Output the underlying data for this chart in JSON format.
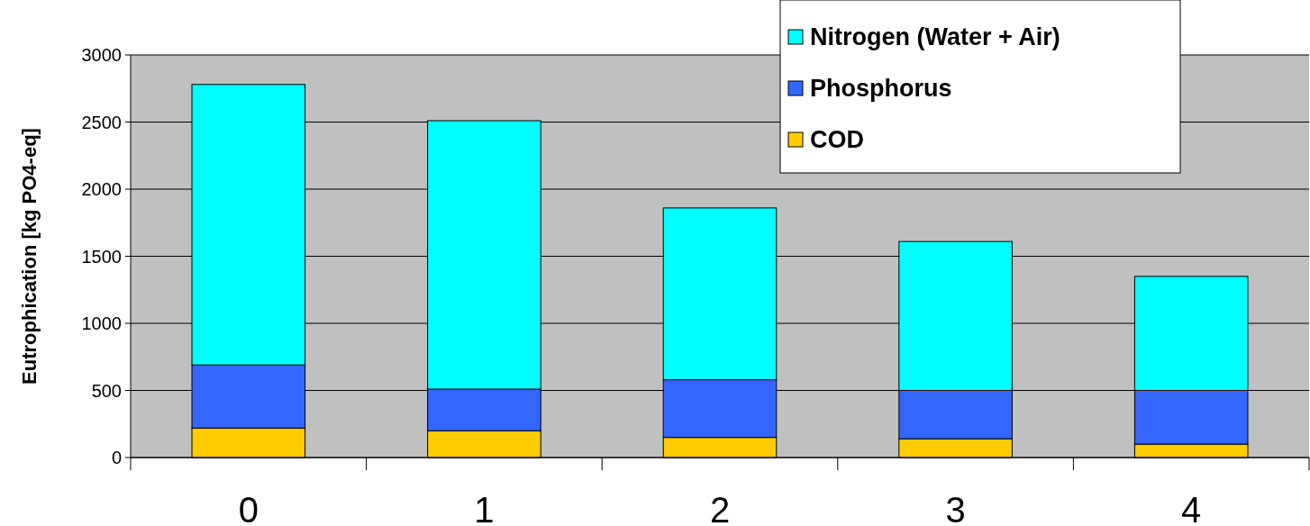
{
  "chart_data": {
    "type": "bar",
    "stacked": true,
    "ylabel": "Eutrophication [kg PO4-eq]",
    "categories": [
      "0",
      "1",
      "2",
      "3",
      "4"
    ],
    "series": [
      {
        "name": "COD",
        "color": "#ffcc00",
        "values": [
          220,
          200,
          150,
          140,
          100
        ]
      },
      {
        "name": "Phosphorus",
        "color": "#3366ff",
        "values": [
          470,
          310,
          430,
          360,
          400
        ]
      },
      {
        "name": "Nitrogen (Water + Air)",
        "color": "#00ffff",
        "values": [
          2090,
          2000,
          1280,
          1110,
          850
        ]
      }
    ],
    "ylim": [
      0,
      3000
    ],
    "yticks": [
      0,
      500,
      1000,
      1500,
      2000,
      2500,
      3000
    ],
    "grid": "y",
    "legend": "top right"
  }
}
